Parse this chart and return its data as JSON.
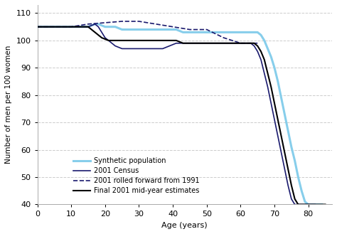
{
  "title": "",
  "xlabel": "Age (years)",
  "ylabel": "Number of men per 100 women",
  "xlim": [
    0,
    87
  ],
  "ylim": [
    40,
    113
  ],
  "yticks": [
    40,
    50,
    60,
    70,
    80,
    90,
    100,
    110
  ],
  "xticks": [
    0,
    10,
    20,
    30,
    40,
    50,
    60,
    70,
    80
  ],
  "background_color": "#ffffff",
  "grid_color": "#cccccc",
  "synthetic_color": "#87CEEB",
  "census_color": "#1a1a6e",
  "rolled_color": "#1a1a6e",
  "mye_color": "#000000",
  "synthetic_ages": [
    0,
    1,
    2,
    3,
    4,
    5,
    6,
    7,
    8,
    9,
    10,
    11,
    12,
    13,
    14,
    15,
    16,
    17,
    18,
    19,
    20,
    21,
    22,
    23,
    24,
    25,
    26,
    27,
    28,
    29,
    30,
    31,
    32,
    33,
    34,
    35,
    36,
    37,
    38,
    39,
    40,
    41,
    42,
    43,
    44,
    45,
    46,
    47,
    48,
    49,
    50,
    51,
    52,
    53,
    54,
    55,
    56,
    57,
    58,
    59,
    60,
    61,
    62,
    63,
    64,
    65,
    66,
    67,
    68,
    69,
    70,
    71,
    72,
    73,
    74,
    75,
    76,
    77,
    78,
    79,
    80,
    81,
    82,
    83,
    84,
    85,
    86,
    87
  ],
  "synthetic_vals": [
    105,
    105,
    105,
    105,
    105,
    105,
    105,
    105,
    105,
    105,
    105,
    105,
    105,
    105,
    105,
    105,
    105.5,
    106,
    106,
    105.5,
    105,
    105,
    105,
    105,
    104.5,
    104,
    104,
    104,
    104,
    104,
    104,
    104,
    104,
    104,
    104,
    104,
    104,
    104,
    104,
    104,
    104,
    104,
    103.5,
    103,
    103,
    103,
    103,
    103,
    103,
    103,
    103,
    103,
    103,
    103,
    103,
    103,
    103,
    103,
    103,
    103,
    103,
    103,
    103,
    103,
    103,
    103,
    102,
    100,
    97,
    94,
    90,
    85,
    79,
    73,
    67,
    61,
    56,
    50,
    45,
    41,
    40,
    40,
    40,
    40,
    40
  ],
  "census_ages": [
    0,
    1,
    2,
    3,
    4,
    5,
    6,
    7,
    8,
    9,
    10,
    11,
    12,
    13,
    14,
    15,
    16,
    17,
    18,
    19,
    20,
    21,
    22,
    23,
    24,
    25,
    26,
    27,
    28,
    29,
    30,
    31,
    32,
    33,
    34,
    35,
    36,
    37,
    38,
    39,
    40,
    41,
    42,
    43,
    44,
    45,
    46,
    47,
    48,
    49,
    50,
    51,
    52,
    53,
    54,
    55,
    56,
    57,
    58,
    59,
    60,
    61,
    62,
    63,
    64,
    65,
    66,
    67,
    68,
    69,
    70,
    71,
    72,
    73,
    74,
    75,
    76,
    77,
    78,
    79,
    80,
    81,
    82,
    83,
    84,
    85,
    86,
    87
  ],
  "census_vals": [
    105,
    105,
    105,
    105,
    105,
    105,
    105,
    105,
    105,
    105,
    105,
    105,
    105,
    105,
    105,
    105,
    105.5,
    106,
    105,
    103,
    101,
    100,
    99,
    98,
    97.5,
    97,
    97,
    97,
    97,
    97,
    97,
    97,
    97,
    97,
    97,
    97,
    97,
    97,
    97.5,
    98,
    98.5,
    99,
    99,
    99,
    99,
    99,
    99,
    99,
    99,
    99,
    99,
    99,
    99,
    99,
    99,
    99,
    99,
    99,
    99,
    99,
    99,
    99,
    99,
    99,
    98,
    96,
    93,
    88,
    83,
    77,
    71,
    65,
    59,
    53,
    47,
    42,
    40,
    40,
    40,
    40,
    40,
    40,
    40
  ],
  "rolled_ages": [
    0,
    5,
    10,
    15,
    20,
    25,
    30,
    35,
    40,
    45,
    50,
    55,
    60,
    65
  ],
  "rolled_vals": [
    105,
    105,
    105,
    106,
    106.5,
    107,
    107,
    106,
    105,
    104,
    104,
    101,
    99,
    99
  ],
  "mye_ages": [
    0,
    1,
    2,
    3,
    4,
    5,
    6,
    7,
    8,
    9,
    10,
    11,
    12,
    13,
    14,
    15,
    16,
    17,
    18,
    19,
    20,
    21,
    22,
    23,
    24,
    25,
    26,
    27,
    28,
    29,
    30,
    31,
    32,
    33,
    34,
    35,
    36,
    37,
    38,
    39,
    40,
    41,
    42,
    43,
    44,
    45,
    46,
    47,
    48,
    49,
    50,
    51,
    52,
    53,
    54,
    55,
    56,
    57,
    58,
    59,
    60,
    61,
    62,
    63,
    64,
    65,
    66,
    67,
    68,
    69,
    70,
    71,
    72,
    73,
    74,
    75,
    76,
    77,
    78,
    79,
    80,
    81,
    82,
    83,
    84,
    85,
    86,
    87
  ],
  "mye_vals": [
    105,
    105,
    105,
    105,
    105,
    105,
    105,
    105,
    105,
    105,
    105,
    105,
    105,
    105,
    105,
    105,
    104,
    103,
    102,
    101,
    100.5,
    100,
    100,
    100,
    100,
    100,
    100,
    100,
    100,
    100,
    100,
    100,
    100,
    100,
    100,
    100,
    100,
    100,
    100,
    100,
    100,
    100,
    99.5,
    99,
    99,
    99,
    99,
    99,
    99,
    99,
    99,
    99,
    99,
    99,
    99,
    99,
    99,
    99,
    99,
    99,
    99,
    99,
    99,
    99,
    99,
    98,
    96,
    93,
    88,
    83,
    77,
    71,
    65,
    59,
    53,
    47,
    42,
    40,
    40,
    40,
    40,
    40,
    40,
    40,
    40,
    40
  ],
  "legend_entries": [
    "Synthetic population",
    "2001 Census",
    "2001 rolled forward from 1991",
    "Final 2001 mid-year estimates"
  ]
}
